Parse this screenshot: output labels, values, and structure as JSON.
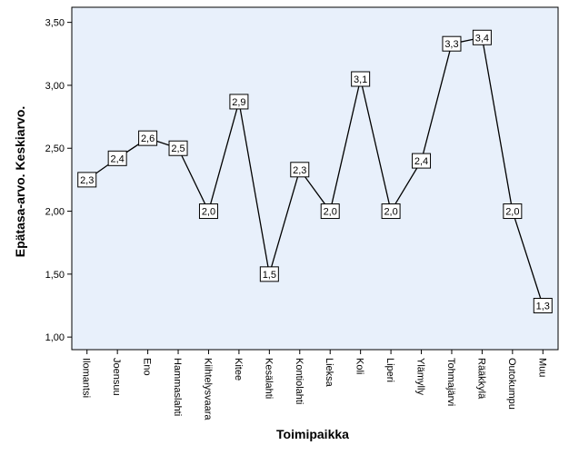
{
  "chart_data": {
    "type": "line",
    "categories": [
      "Ilomantsi",
      "Joensuu",
      "Eno",
      "Hammaslahti",
      "Kiihtelysvaara",
      "Kitee",
      "Kesälahti",
      "Kontiolahti",
      "Lieksa",
      "Koli",
      "Liperi",
      "Ylämylly",
      "Tohmajärvi",
      "Rääkkylä",
      "Outokumpu",
      "Muu"
    ],
    "series": [
      {
        "values": [
          2.25,
          2.42,
          2.58,
          2.5,
          2.0,
          2.87,
          1.5,
          2.33,
          2.0,
          3.05,
          2.0,
          2.4,
          3.33,
          3.38,
          2.0,
          1.25
        ],
        "labels": [
          "2,3",
          "2,4",
          "2,6",
          "2,5",
          "2,0",
          "2,9",
          "1,5",
          "2,3",
          "2,0",
          "3,1",
          "2,0",
          "2,4",
          "3,3",
          "3,4",
          "2,0",
          "1,3"
        ],
        "color": "#000000"
      }
    ],
    "xlabel": "Toimipaikka",
    "ylabel": "Epätasa-arvo. Keskiarvo.",
    "ylim": [
      0.9,
      3.62
    ],
    "yticks": [
      1.0,
      1.5,
      2.0,
      2.5,
      3.0,
      3.5
    ],
    "ytick_labels": [
      "1,00",
      "1,50",
      "2,00",
      "2,50",
      "3,00",
      "3,50"
    ],
    "grid": false,
    "plot_background": "#e8f0fb"
  }
}
